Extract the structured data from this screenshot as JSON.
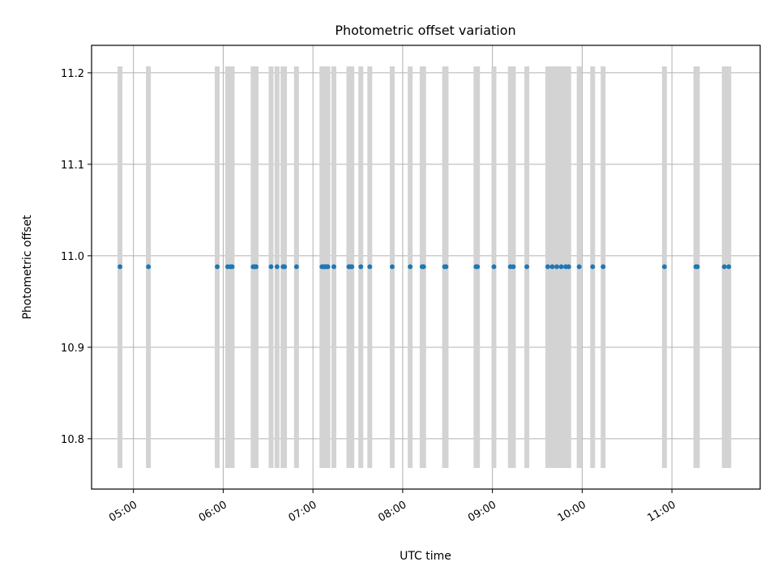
{
  "chart_data": {
    "type": "scatter",
    "title": "Photometric offset variation",
    "xlabel": "UTC time",
    "ylabel": "Photometric offset",
    "x_unit": "UTC time of day",
    "ylim": [
      10.745,
      11.23
    ],
    "xlim": [
      "04:32",
      "11:59"
    ],
    "grid": true,
    "legend": "none",
    "colors": {
      "points": "#1f77b4",
      "errorbars": "#d3d3d3",
      "grid": "#b0b0b0"
    },
    "y_ticks": [
      "10.8",
      "10.9",
      "11.0",
      "11.1",
      "11.2"
    ],
    "x_ticks": [
      "05:00",
      "06:00",
      "07:00",
      "08:00",
      "09:00",
      "10:00",
      "11:00"
    ],
    "errorbar": {
      "low": 10.768,
      "high": 11.207
    },
    "points": [
      {
        "x": "04:51",
        "y": 10.988
      },
      {
        "x": "05:10",
        "y": 10.988
      },
      {
        "x": "05:56",
        "y": 10.988
      },
      {
        "x": "06:03",
        "y": 10.988
      },
      {
        "x": "06:05",
        "y": 10.988
      },
      {
        "x": "06:06",
        "y": 10.988
      },
      {
        "x": "06:20",
        "y": 10.988
      },
      {
        "x": "06:21",
        "y": 10.988
      },
      {
        "x": "06:22",
        "y": 10.988
      },
      {
        "x": "06:32",
        "y": 10.988
      },
      {
        "x": "06:36",
        "y": 10.988
      },
      {
        "x": "06:40",
        "y": 10.988
      },
      {
        "x": "06:41",
        "y": 10.988
      },
      {
        "x": "06:49",
        "y": 10.988
      },
      {
        "x": "07:06",
        "y": 10.988
      },
      {
        "x": "07:07",
        "y": 10.988
      },
      {
        "x": "07:08",
        "y": 10.988
      },
      {
        "x": "07:09",
        "y": 10.988
      },
      {
        "x": "07:10",
        "y": 10.988
      },
      {
        "x": "07:14",
        "y": 10.988
      },
      {
        "x": "07:24",
        "y": 10.988
      },
      {
        "x": "07:25",
        "y": 10.988
      },
      {
        "x": "07:26",
        "y": 10.988
      },
      {
        "x": "07:32",
        "y": 10.988
      },
      {
        "x": "07:38",
        "y": 10.988
      },
      {
        "x": "07:53",
        "y": 10.988
      },
      {
        "x": "08:05",
        "y": 10.988
      },
      {
        "x": "08:13",
        "y": 10.988
      },
      {
        "x": "08:14",
        "y": 10.988
      },
      {
        "x": "08:28",
        "y": 10.988
      },
      {
        "x": "08:29",
        "y": 10.988
      },
      {
        "x": "08:49",
        "y": 10.988
      },
      {
        "x": "08:50",
        "y": 10.988
      },
      {
        "x": "09:01",
        "y": 10.988
      },
      {
        "x": "09:12",
        "y": 10.988
      },
      {
        "x": "09:14",
        "y": 10.988
      },
      {
        "x": "09:23",
        "y": 10.988
      },
      {
        "x": "09:37",
        "y": 10.988
      },
      {
        "x": "09:40",
        "y": 10.988
      },
      {
        "x": "09:43",
        "y": 10.988
      },
      {
        "x": "09:46",
        "y": 10.988
      },
      {
        "x": "09:49",
        "y": 10.988
      },
      {
        "x": "09:51",
        "y": 10.988
      },
      {
        "x": "09:58",
        "y": 10.988
      },
      {
        "x": "10:07",
        "y": 10.988
      },
      {
        "x": "10:14",
        "y": 10.988
      },
      {
        "x": "10:55",
        "y": 10.988
      },
      {
        "x": "11:16",
        "y": 10.988
      },
      {
        "x": "11:17",
        "y": 10.988
      },
      {
        "x": "11:35",
        "y": 10.988
      },
      {
        "x": "11:38",
        "y": 10.988
      }
    ]
  }
}
